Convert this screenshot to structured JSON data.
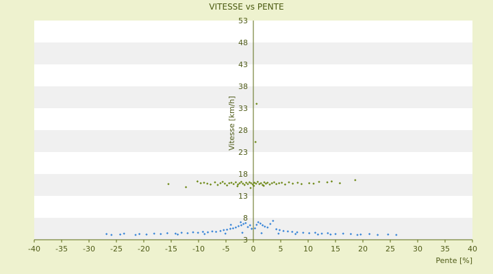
{
  "chart_data": {
    "type": "scatter",
    "title": "VITESSE vs PENTE",
    "xlabel": "Pente [%]",
    "ylabel": "Vitesse [km/h]",
    "xlim": [
      -40,
      40
    ],
    "ylim": [
      3,
      53
    ],
    "xticks": [
      -40,
      -35,
      -30,
      -25,
      -20,
      -15,
      -10,
      -5,
      0,
      5,
      10,
      15,
      20,
      25,
      30,
      35,
      40
    ],
    "yticks": [
      3,
      8,
      13,
      18,
      23,
      28,
      33,
      38,
      43,
      48,
      53
    ],
    "grid": "alternating horizontal bands",
    "legend": "none",
    "colors": {
      "background": "#eef2cf",
      "plot_band_light": "#ffffff",
      "plot_band_dark": "#f0f0f0",
      "axis": "#5a6a12",
      "series_green": "#6f8a1a",
      "series_blue": "#3a86d8"
    },
    "series": [
      {
        "color": "#6f8a1a",
        "points": [
          [
            -15.5,
            15.7
          ],
          [
            -12.3,
            15.0
          ],
          [
            -10.2,
            16.3
          ],
          [
            -9.6,
            15.9
          ],
          [
            -9.0,
            16.0
          ],
          [
            -8.4,
            15.8
          ],
          [
            -7.8,
            15.6
          ],
          [
            -7.0,
            16.1
          ],
          [
            -6.5,
            15.5
          ],
          [
            -6.0,
            15.9
          ],
          [
            -5.6,
            16.2
          ],
          [
            -5.2,
            15.8
          ],
          [
            -4.8,
            15.4
          ],
          [
            -4.4,
            15.9
          ],
          [
            -4.0,
            16.0
          ],
          [
            -3.6,
            15.7
          ],
          [
            -3.2,
            16.1
          ],
          [
            -2.8,
            15.6
          ],
          [
            -2.5,
            15.9
          ],
          [
            -2.2,
            16.2
          ],
          [
            -1.9,
            15.8
          ],
          [
            -1.6,
            15.5
          ],
          [
            -1.3,
            16.0
          ],
          [
            -1.0,
            15.7
          ],
          [
            -0.7,
            16.1
          ],
          [
            -0.4,
            15.9
          ],
          [
            -0.1,
            15.6
          ],
          [
            0.2,
            16.0
          ],
          [
            0.5,
            15.8
          ],
          [
            0.8,
            16.2
          ],
          [
            1.1,
            15.7
          ],
          [
            1.4,
            15.9
          ],
          [
            1.7,
            15.5
          ],
          [
            2.0,
            16.1
          ],
          [
            2.3,
            15.8
          ],
          [
            2.6,
            16.0
          ],
          [
            3.0,
            15.6
          ],
          [
            3.4,
            15.9
          ],
          [
            3.8,
            16.1
          ],
          [
            4.2,
            15.7
          ],
          [
            4.7,
            15.9
          ],
          [
            5.2,
            16.0
          ],
          [
            5.8,
            15.6
          ],
          [
            6.5,
            16.1
          ],
          [
            7.2,
            15.8
          ],
          [
            8.1,
            16.0
          ],
          [
            8.8,
            15.7
          ],
          [
            10.2,
            15.9
          ],
          [
            11.0,
            15.8
          ],
          [
            12.0,
            16.2
          ],
          [
            13.5,
            16.1
          ],
          [
            14.3,
            16.3
          ],
          [
            15.8,
            15.9
          ],
          [
            18.6,
            16.6
          ],
          [
            0.4,
            25.3
          ],
          [
            0.6,
            34.0
          ],
          [
            -0.5,
            14.8
          ],
          [
            0.1,
            15.3
          ],
          [
            1.9,
            15.3
          ],
          [
            -2.9,
            15.2
          ]
        ]
      },
      {
        "color": "#3a86d8",
        "points": [
          [
            -26.8,
            4.3
          ],
          [
            -25.9,
            4.1
          ],
          [
            -24.3,
            4.2
          ],
          [
            -23.6,
            4.4
          ],
          [
            -20.8,
            4.3
          ],
          [
            -19.5,
            4.2
          ],
          [
            -18.1,
            4.4
          ],
          [
            -16.9,
            4.3
          ],
          [
            -15.7,
            4.5
          ],
          [
            -14.2,
            4.4
          ],
          [
            -13.1,
            4.6
          ],
          [
            -12.0,
            4.5
          ],
          [
            -11.0,
            4.7
          ],
          [
            -10.1,
            4.6
          ],
          [
            -9.2,
            4.8
          ],
          [
            -8.3,
            4.7
          ],
          [
            -7.5,
            4.9
          ],
          [
            -6.8,
            4.8
          ],
          [
            -6.0,
            5.0
          ],
          [
            -5.4,
            5.2
          ],
          [
            -4.8,
            5.3
          ],
          [
            -4.2,
            5.5
          ],
          [
            -3.7,
            5.6
          ],
          [
            -3.2,
            5.8
          ],
          [
            -2.7,
            6.1
          ],
          [
            -2.2,
            6.3
          ],
          [
            -1.8,
            6.6
          ],
          [
            -1.4,
            6.8
          ],
          [
            -1.0,
            5.9
          ],
          [
            -0.6,
            6.3
          ],
          [
            -0.3,
            5.5
          ],
          [
            -2.3,
            7.0
          ],
          [
            -4.1,
            6.4
          ],
          [
            0.3,
            5.6
          ],
          [
            0.6,
            6.4
          ],
          [
            0.9,
            7.0
          ],
          [
            1.3,
            6.7
          ],
          [
            1.7,
            6.3
          ],
          [
            2.1,
            6.0
          ],
          [
            2.6,
            5.8
          ],
          [
            3.1,
            6.6
          ],
          [
            3.6,
            7.3
          ],
          [
            4.2,
            5.4
          ],
          [
            4.8,
            5.2
          ],
          [
            5.5,
            5.0
          ],
          [
            6.3,
            4.9
          ],
          [
            7.1,
            4.8
          ],
          [
            8.0,
            4.7
          ],
          [
            9.1,
            4.6
          ],
          [
            10.2,
            4.5
          ],
          [
            11.3,
            4.6
          ],
          [
            12.5,
            4.4
          ],
          [
            13.6,
            4.5
          ],
          [
            15.0,
            4.3
          ],
          [
            16.4,
            4.4
          ],
          [
            17.8,
            4.3
          ],
          [
            19.6,
            4.2
          ],
          [
            21.2,
            4.3
          ],
          [
            22.7,
            4.1
          ],
          [
            24.6,
            4.2
          ],
          [
            26.1,
            4.1
          ],
          [
            -8.9,
            4.3
          ],
          [
            -5.1,
            4.4
          ],
          [
            -2.0,
            4.6
          ],
          [
            1.5,
            4.5
          ],
          [
            4.6,
            4.4
          ],
          [
            7.7,
            4.3
          ],
          [
            11.8,
            4.2
          ],
          [
            -13.8,
            4.2
          ],
          [
            14.1,
            4.2
          ],
          [
            -21.5,
            4.1
          ],
          [
            19.0,
            4.1
          ]
        ]
      }
    ]
  }
}
